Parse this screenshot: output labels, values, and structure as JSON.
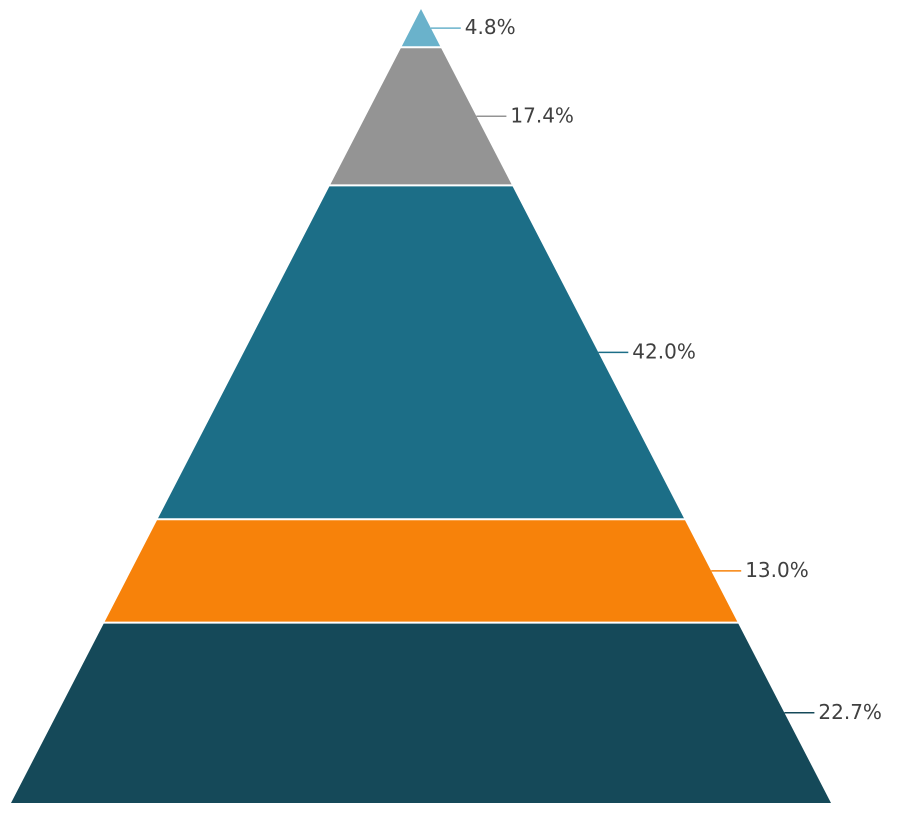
{
  "chart_data": {
    "type": "pyramid",
    "title": "",
    "segments": [
      {
        "value": 4.8,
        "label": "4.8%",
        "color": "#6ab2cb"
      },
      {
        "value": 17.4,
        "label": "17.4%",
        "color": "#949494"
      },
      {
        "value": 42.0,
        "label": "42.0%",
        "color": "#1c6e87"
      },
      {
        "value": 13.0,
        "label": "13.0%",
        "color": "#f7820a"
      },
      {
        "value": 22.7,
        "label": "22.7%",
        "color": "#154959"
      }
    ],
    "separator_color": "#ffffff",
    "legend": "none",
    "grid": false
  }
}
